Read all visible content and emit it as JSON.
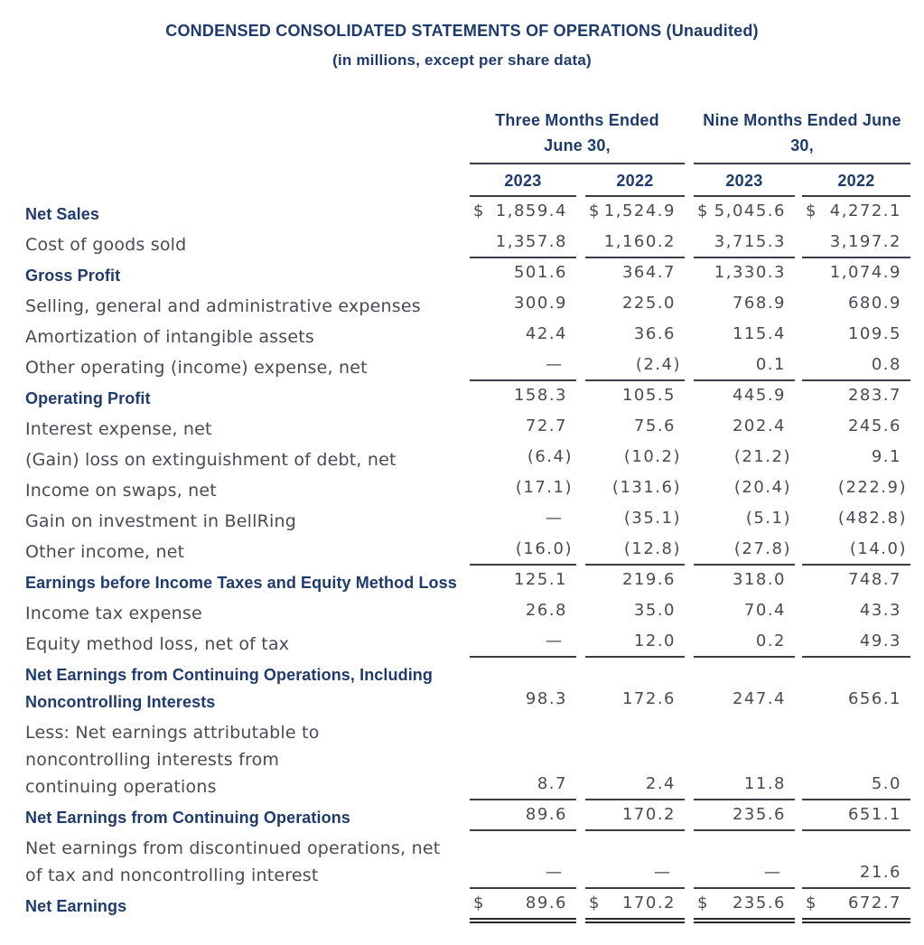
{
  "header": {
    "title": "CONDENSED CONSOLIDATED STATEMENTS OF OPERATIONS (Unaudited)",
    "subtitle": "(in millions, except per share data)"
  },
  "colors": {
    "accent_navy": "#1f3b6b",
    "body_text": "#4a4b52",
    "rule": "#3b3e44"
  },
  "table": {
    "currency_symbol": "$",
    "column_groups": [
      {
        "label": "Three Months Ended June 30,"
      },
      {
        "label": "Nine Months Ended June 30,"
      }
    ],
    "year_headers": [
      "2023",
      "2022",
      "2023",
      "2022"
    ],
    "rows": [
      {
        "label": "Net Sales",
        "bold": true,
        "dollar": true,
        "underline": null,
        "values": [
          "1,859.4",
          "1,524.9",
          "5,045.6",
          "4,272.1"
        ]
      },
      {
        "label": "Cost of goods sold",
        "bold": false,
        "dollar": false,
        "underline": "single",
        "values": [
          "1,357.8",
          "1,160.2",
          "3,715.3",
          "3,197.2"
        ]
      },
      {
        "label": "Gross Profit",
        "bold": true,
        "dollar": false,
        "underline": null,
        "values": [
          "501.6",
          "364.7",
          "1,330.3",
          "1,074.9"
        ]
      },
      {
        "label": "Selling, general and administrative expenses",
        "bold": false,
        "dollar": false,
        "underline": null,
        "values": [
          "300.9",
          "225.0",
          "768.9",
          "680.9"
        ]
      },
      {
        "label": "Amortization of intangible assets",
        "bold": false,
        "dollar": false,
        "underline": null,
        "values": [
          "42.4",
          "36.6",
          "115.4",
          "109.5"
        ]
      },
      {
        "label": "Other operating (income) expense, net",
        "bold": false,
        "dollar": false,
        "underline": "single",
        "values": [
          "—",
          "(2.4)",
          "0.1",
          "0.8"
        ]
      },
      {
        "label": "Operating Profit",
        "bold": true,
        "dollar": false,
        "underline": null,
        "values": [
          "158.3",
          "105.5",
          "445.9",
          "283.7"
        ]
      },
      {
        "label": "Interest expense, net",
        "bold": false,
        "dollar": false,
        "underline": null,
        "values": [
          "72.7",
          "75.6",
          "202.4",
          "245.6"
        ]
      },
      {
        "label": "(Gain) loss on extinguishment of debt, net",
        "bold": false,
        "dollar": false,
        "underline": null,
        "values": [
          "(6.4)",
          "(10.2)",
          "(21.2)",
          "9.1"
        ]
      },
      {
        "label": "Income on swaps, net",
        "bold": false,
        "dollar": false,
        "underline": null,
        "values": [
          "(17.1)",
          "(131.6)",
          "(20.4)",
          "(222.9)"
        ]
      },
      {
        "label": "Gain on investment in BellRing",
        "bold": false,
        "dollar": false,
        "underline": null,
        "values": [
          "—",
          "(35.1)",
          "(5.1)",
          "(482.8)"
        ]
      },
      {
        "label": "Other income, net",
        "bold": false,
        "dollar": false,
        "underline": "single",
        "values": [
          "(16.0)",
          "(12.8)",
          "(27.8)",
          "(14.0)"
        ]
      },
      {
        "label": "Earnings before Income Taxes and Equity Method Loss",
        "bold": true,
        "dollar": false,
        "underline": null,
        "values": [
          "125.1",
          "219.6",
          "318.0",
          "748.7"
        ]
      },
      {
        "label": "Income tax expense",
        "bold": false,
        "dollar": false,
        "underline": null,
        "values": [
          "26.8",
          "35.0",
          "70.4",
          "43.3"
        ]
      },
      {
        "label": "Equity method loss, net of tax",
        "bold": false,
        "dollar": false,
        "underline": "single",
        "values": [
          "—",
          "12.0",
          "0.2",
          "49.3"
        ]
      },
      {
        "label": "Net Earnings from Continuing Operations, Including Noncontrolling Interests",
        "bold": true,
        "dollar": false,
        "underline": null,
        "values": [
          "98.3",
          "172.6",
          "247.4",
          "656.1"
        ]
      },
      {
        "label": "Less: Net earnings attributable to noncontrolling interests from continuing operations",
        "bold": false,
        "dollar": false,
        "underline": "single",
        "values": [
          "8.7",
          "2.4",
          "11.8",
          "5.0"
        ]
      },
      {
        "label": "Net Earnings from Continuing Operations",
        "bold": true,
        "dollar": false,
        "underline": "single",
        "values": [
          "89.6",
          "170.2",
          "235.6",
          "651.1"
        ]
      },
      {
        "label": "Net earnings from discontinued operations, net of tax and noncontrolling interest",
        "bold": false,
        "dollar": false,
        "underline": "single",
        "values": [
          "—",
          "—",
          "—",
          "21.6"
        ]
      },
      {
        "label": "Net Earnings",
        "bold": true,
        "dollar": true,
        "underline": "double",
        "values": [
          "89.6",
          "170.2",
          "235.6",
          "672.7"
        ]
      }
    ]
  }
}
